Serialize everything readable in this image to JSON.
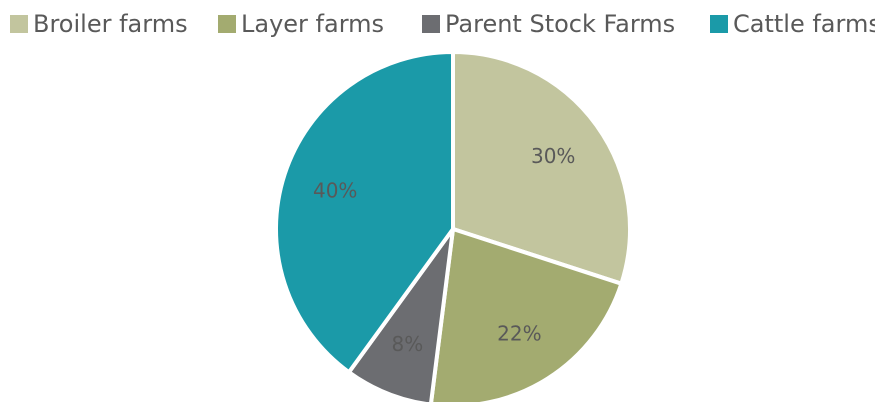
{
  "chart_data": {
    "type": "pie",
    "title": "",
    "legend_position": "top",
    "slices": [
      {
        "label": "Broiler farms",
        "value": 30,
        "display": "30%",
        "color": "#c2c59e"
      },
      {
        "label": "Layer farms",
        "value": 22,
        "display": "22%",
        "color": "#a3ab70"
      },
      {
        "label": "Parent Stock Farms",
        "value": 8,
        "display": "8%",
        "color": "#6c6d71"
      },
      {
        "label": "Cattle farms",
        "value": 40,
        "display": "40%",
        "color": "#1b9aa8"
      }
    ]
  }
}
